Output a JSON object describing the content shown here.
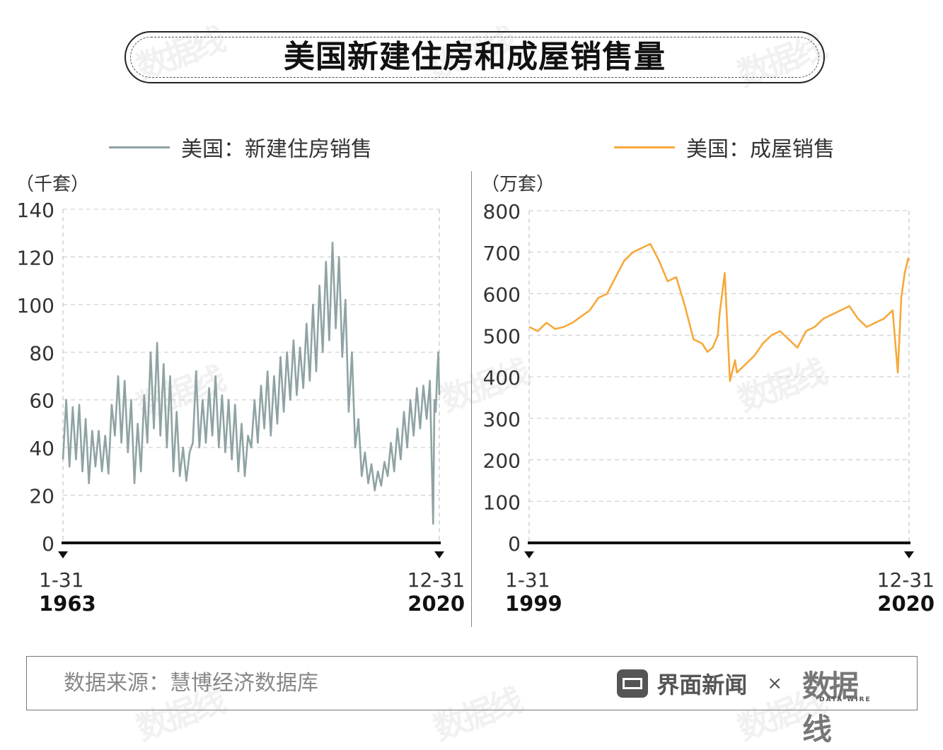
{
  "title": "美国新建住房和成屋销售量",
  "watermark": "数据线",
  "footer": {
    "source": "数据来源：慧博经济数据库",
    "brand_name": "界面新闻",
    "times": "×",
    "logo_text": "数据线",
    "logo_sub": "DATA WIRE"
  },
  "chart_data": [
    {
      "type": "line",
      "title": "",
      "legend": "美国：新建住房销售",
      "unit": "（千套）",
      "color": "#8fa3a4",
      "ylim": [
        0,
        140
      ],
      "yticks": [
        "0",
        "20",
        "40",
        "60",
        "80",
        "100",
        "120",
        "140"
      ],
      "x_start": {
        "date": "1-31",
        "year": "1963"
      },
      "x_end": {
        "date": "12-31",
        "year": "2020"
      },
      "x": [
        1963,
        1963.5,
        1964,
        1964.5,
        1965,
        1965.5,
        1966,
        1966.5,
        1967,
        1967.5,
        1968,
        1968.5,
        1969,
        1969.5,
        1970,
        1970.5,
        1971,
        1971.5,
        1972,
        1972.5,
        1973,
        1973.5,
        1974,
        1974.5,
        1975,
        1975.5,
        1976,
        1976.5,
        1977,
        1977.5,
        1978,
        1978.5,
        1979,
        1979.5,
        1980,
        1980.5,
        1981,
        1981.5,
        1982,
        1982.5,
        1983,
        1983.5,
        1984,
        1984.5,
        1985,
        1985.5,
        1986,
        1986.5,
        1987,
        1987.5,
        1988,
        1988.5,
        1989,
        1989.5,
        1990,
        1990.5,
        1991,
        1991.5,
        1992,
        1992.5,
        1993,
        1993.5,
        1994,
        1994.5,
        1995,
        1995.5,
        1996,
        1996.5,
        1997,
        1997.5,
        1998,
        1998.5,
        1999,
        1999.5,
        2000,
        2000.5,
        2001,
        2001.5,
        2002,
        2002.5,
        2003,
        2003.5,
        2004,
        2004.5,
        2005,
        2005.5,
        2006,
        2006.5,
        2007,
        2007.5,
        2008,
        2008.5,
        2009,
        2009.5,
        2010,
        2010.5,
        2011,
        2011.5,
        2012,
        2012.5,
        2013,
        2013.5,
        2014,
        2014.5,
        2015,
        2015.5,
        2016,
        2016.5,
        2017,
        2017.5,
        2018,
        2018.5,
        2019,
        2019.5,
        2020,
        2020.2,
        2020.4,
        2020.6,
        2020.8,
        2020.95
      ],
      "values": [
        35,
        60,
        32,
        57,
        35,
        58,
        30,
        52,
        25,
        47,
        32,
        47,
        30,
        45,
        29,
        58,
        45,
        70,
        42,
        68,
        38,
        60,
        25,
        50,
        30,
        62,
        42,
        80,
        48,
        84,
        45,
        75,
        40,
        70,
        30,
        55,
        28,
        40,
        26,
        38,
        42,
        72,
        40,
        60,
        42,
        65,
        45,
        70,
        40,
        62,
        38,
        60,
        35,
        58,
        30,
        50,
        28,
        45,
        40,
        60,
        42,
        66,
        48,
        72,
        45,
        70,
        50,
        78,
        55,
        80,
        60,
        85,
        62,
        82,
        65,
        92,
        68,
        100,
        72,
        108,
        80,
        118,
        85,
        126,
        90,
        120,
        78,
        102,
        55,
        80,
        40,
        52,
        28,
        38,
        25,
        33,
        22,
        30,
        24,
        34,
        28,
        42,
        30,
        48,
        35,
        55,
        40,
        60,
        45,
        65,
        48,
        66,
        52,
        68,
        8,
        60,
        55,
        70,
        80,
        62
      ]
    },
    {
      "type": "line",
      "title": "",
      "legend": "美国：成屋销售",
      "unit": "（万套）",
      "color": "#f6a93b",
      "ylim": [
        0,
        800
      ],
      "yticks": [
        "0",
        "100",
        "200",
        "300",
        "400",
        "500",
        "600",
        "700",
        "800"
      ],
      "x_start": {
        "date": "1-31",
        "year": "1999"
      },
      "x_end": {
        "date": "12-31",
        "year": "2020"
      },
      "x": [
        1999,
        1999.5,
        2000,
        2000.5,
        2001,
        2001.5,
        2002,
        2002.5,
        2003,
        2003.5,
        2004,
        2004.5,
        2005,
        2005.5,
        2006,
        2006.5,
        2007,
        2007.5,
        2008,
        2008.5,
        2009,
        2009.3,
        2009.6,
        2009.9,
        2010,
        2010.3,
        2010.6,
        2010.9,
        2011,
        2011.5,
        2012,
        2012.5,
        2013,
        2013.5,
        2014,
        2014.5,
        2015,
        2015.5,
        2016,
        2016.5,
        2017,
        2017.5,
        2018,
        2018.5,
        2019,
        2019.5,
        2020,
        2020.3,
        2020.5,
        2020.7,
        2020.9,
        2020.95
      ],
      "values": [
        520,
        510,
        530,
        515,
        520,
        530,
        545,
        560,
        590,
        600,
        640,
        680,
        700,
        710,
        720,
        680,
        630,
        640,
        570,
        490,
        480,
        460,
        470,
        500,
        550,
        650,
        390,
        440,
        410,
        430,
        450,
        480,
        500,
        510,
        490,
        470,
        510,
        520,
        540,
        550,
        560,
        570,
        540,
        520,
        530,
        540,
        560,
        410,
        590,
        650,
        685,
        680
      ]
    }
  ]
}
